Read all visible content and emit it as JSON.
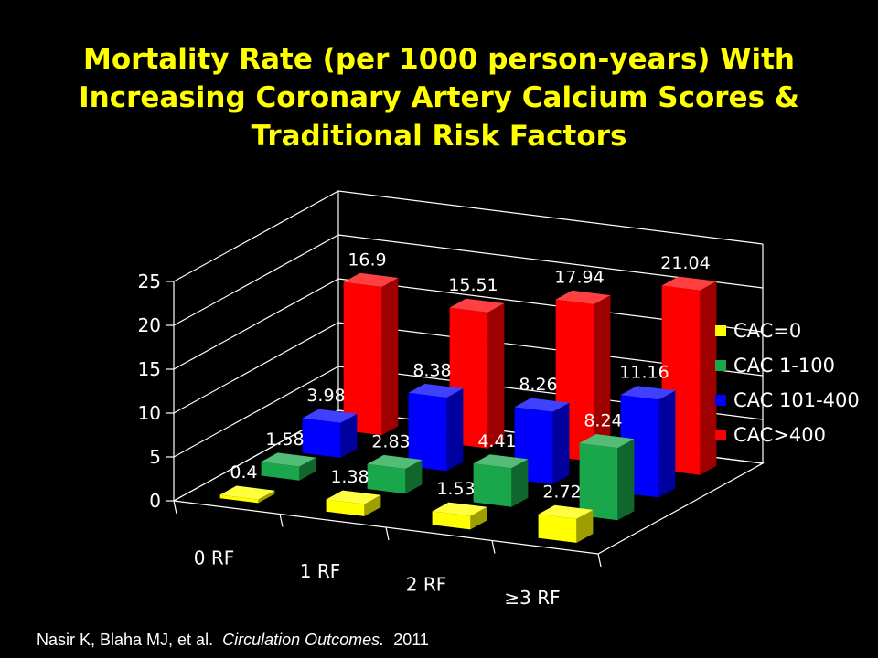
{
  "title_lines": [
    "Mortality Rate (per 1000 person-years) With",
    "Increasing Coronary Artery Calcium Scores &",
    "Traditional Risk Factors"
  ],
  "chart_data": {
    "type": "bar",
    "subtype": "3d-column",
    "categories": [
      "0 RF",
      "1 RF",
      "2 RF",
      "≥3 RF"
    ],
    "series": [
      {
        "name": "CAC=0",
        "color": "#ffff00",
        "values": [
          0.4,
          1.38,
          1.53,
          2.72
        ],
        "labels": [
          "0.4",
          "1.38",
          "1.53",
          "2.72"
        ]
      },
      {
        "name": "CAC 1-100",
        "color": "#1aa64a",
        "values": [
          1.58,
          2.83,
          4.41,
          8.24
        ],
        "labels": [
          "1.58",
          "2.83",
          "4.41",
          "8.24"
        ]
      },
      {
        "name": "CAC 101-400",
        "color": "#0000ff",
        "values": [
          3.98,
          8.38,
          8.26,
          11.16
        ],
        "labels": [
          "3.98",
          "8.38",
          "8.26",
          "11.16"
        ]
      },
      {
        "name": "CAC>400",
        "color": "#ff0000",
        "values": [
          16.9,
          15.51,
          17.94,
          21.04
        ],
        "labels": [
          "16.9",
          "15.51",
          "17.94",
          "21.04"
        ]
      }
    ],
    "yticks": [
      "0",
      "5",
      "10",
      "15",
      "20",
      "25"
    ],
    "ylim": [
      0,
      25
    ],
    "grid": true,
    "legend": "right",
    "background": "#000000",
    "text_color": "#ffffff"
  },
  "citation": {
    "authors": "Nasir K, Blaha MJ, et al.",
    "journal": "Circulation Outcomes.",
    "year": "2011"
  }
}
